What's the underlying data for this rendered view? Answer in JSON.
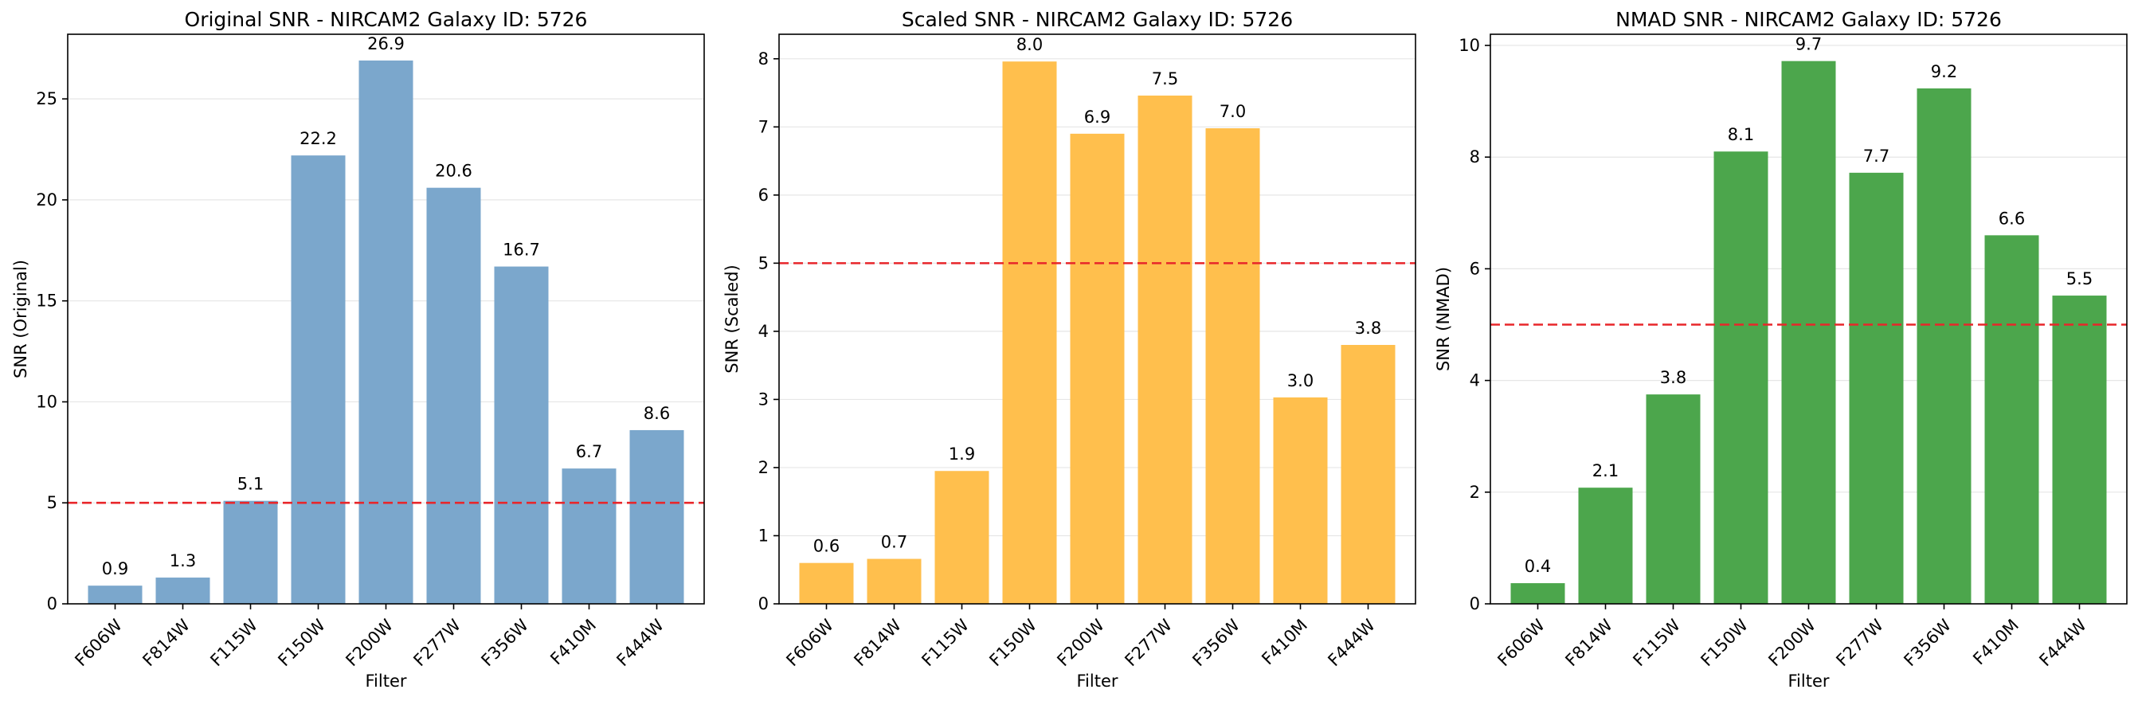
{
  "colors": {
    "threshold_line": "#e8262a",
    "grid": "#e6e6e6",
    "axis": "#000000"
  },
  "chart_data": [
    {
      "type": "bar",
      "title": "Original SNR - NIRCAM2 Galaxy ID: 5726",
      "xlabel": "Filter",
      "ylabel": "SNR (Original)",
      "categories": [
        "F606W",
        "F814W",
        "F115W",
        "F150W",
        "F200W",
        "F277W",
        "F356W",
        "F410M",
        "F444W"
      ],
      "values": [
        0.9,
        1.3,
        5.1,
        22.2,
        26.9,
        20.6,
        16.7,
        6.7,
        8.6
      ],
      "value_labels": [
        "0.9",
        "1.3",
        "5.1",
        "22.2",
        "26.9",
        "20.6",
        "16.7",
        "6.7",
        "8.6"
      ],
      "ylim": [
        0,
        28.2
      ],
      "yticks": [
        0,
        5,
        10,
        15,
        20,
        25
      ],
      "threshold": 5,
      "bar_color": "#7ba7cc",
      "grid": "y"
    },
    {
      "type": "bar",
      "title": "Scaled SNR - NIRCAM2 Galaxy ID: 5726",
      "xlabel": "Filter",
      "ylabel": "SNR (Scaled)",
      "categories": [
        "F606W",
        "F814W",
        "F115W",
        "F150W",
        "F200W",
        "F277W",
        "F356W",
        "F410M",
        "F444W"
      ],
      "values": [
        0.6,
        0.66,
        1.95,
        7.96,
        6.9,
        7.46,
        6.98,
        3.03,
        3.8
      ],
      "value_labels": [
        "0.6",
        "0.7",
        "1.9",
        "8.0",
        "6.9",
        "7.5",
        "7.0",
        "3.0",
        "3.8"
      ],
      "ylim": [
        0,
        8.36
      ],
      "yticks": [
        0,
        1,
        2,
        3,
        4,
        5,
        6,
        7,
        8
      ],
      "threshold": 5,
      "bar_color": "#ffbf4d",
      "grid": "y"
    },
    {
      "type": "bar",
      "title": "NMAD SNR - NIRCAM2 Galaxy ID: 5726",
      "xlabel": "Filter",
      "ylabel": "SNR (NMAD)",
      "categories": [
        "F606W",
        "F814W",
        "F115W",
        "F150W",
        "F200W",
        "F277W",
        "F356W",
        "F410M",
        "F444W"
      ],
      "values": [
        0.37,
        2.08,
        3.75,
        8.1,
        9.72,
        7.72,
        9.23,
        6.6,
        5.52
      ],
      "value_labels": [
        "0.4",
        "2.1",
        "3.8",
        "8.1",
        "9.7",
        "7.7",
        "9.2",
        "6.6",
        "5.5"
      ],
      "ylim": [
        0,
        10.2
      ],
      "yticks": [
        0,
        2,
        4,
        6,
        8,
        10
      ],
      "threshold": 5,
      "bar_color": "#4ca64c",
      "grid": "y"
    }
  ]
}
